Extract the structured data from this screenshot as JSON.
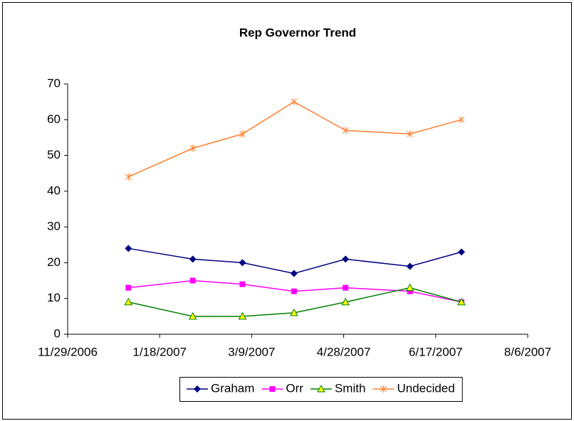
{
  "chart_data": {
    "type": "line",
    "title": "Rep Governor Trend",
    "x": [
      "2007-01-01",
      "2007-02-05",
      "2007-03-04",
      "2007-04-01",
      "2007-04-29",
      "2007-06-03",
      "2007-07-01"
    ],
    "series": [
      {
        "name": "Graham",
        "color": "#000080",
        "marker": "diamond",
        "values": [
          24,
          21,
          20,
          17,
          21,
          19,
          23
        ]
      },
      {
        "name": "Orr",
        "color": "#ff00ff",
        "marker": "square",
        "values": [
          13,
          15,
          14,
          12,
          13,
          12,
          9
        ]
      },
      {
        "name": "Smith",
        "color": "#008000",
        "marker": "triangle",
        "values": [
          9,
          5,
          5,
          6,
          9,
          13,
          9
        ]
      },
      {
        "name": "Undecided",
        "color": "#ff8030",
        "marker": "star",
        "values": [
          44,
          52,
          56,
          65,
          57,
          56,
          60
        ]
      }
    ],
    "xlim": [
      "2006-11-29",
      "2007-08-06"
    ],
    "xticks": [
      {
        "value": "2006-11-29",
        "label": "11/29/2006"
      },
      {
        "value": "2007-01-18",
        "label": "1/18/2007"
      },
      {
        "value": "2007-03-09",
        "label": "3/9/2007"
      },
      {
        "value": "2007-04-28",
        "label": "4/28/2007"
      },
      {
        "value": "2007-06-17",
        "label": "6/17/2007"
      },
      {
        "value": "2007-08-06",
        "label": "8/6/2007"
      }
    ],
    "ylim": [
      0,
      70
    ],
    "yticks": [
      0,
      10,
      20,
      30,
      40,
      50,
      60,
      70
    ],
    "grid": false,
    "legend": "bottom"
  }
}
